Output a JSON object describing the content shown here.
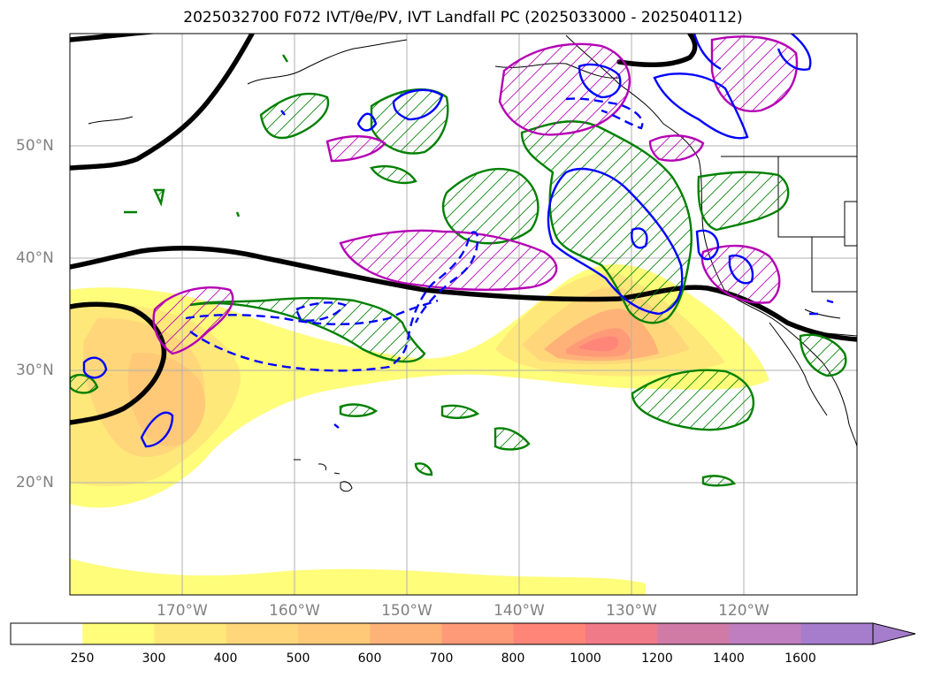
{
  "title": "2025032700 F072 IVT/θe/PV, IVT Landfall PC (2025033000 - 2025040112)",
  "map": {
    "extent": {
      "lon_min": -180,
      "lon_max": -110,
      "lat_min": 10,
      "lat_max": 60
    },
    "lat_ticks": [
      {
        "value": 20,
        "label": "20°N"
      },
      {
        "value": 30,
        "label": "30°N"
      },
      {
        "value": 40,
        "label": "40°N"
      },
      {
        "value": 50,
        "label": "50°N"
      }
    ],
    "lon_ticks": [
      {
        "value": -170,
        "label": "170°W"
      },
      {
        "value": -160,
        "label": "160°W"
      },
      {
        "value": -150,
        "label": "150°W"
      },
      {
        "value": -140,
        "label": "140°W"
      },
      {
        "value": -130,
        "label": "130°W"
      },
      {
        "value": -120,
        "label": "120°W"
      }
    ],
    "gridlines": true
  },
  "colorbar": {
    "levels": [
      "250",
      "300",
      "400",
      "500",
      "600",
      "700",
      "800",
      "1000",
      "1200",
      "1400",
      "1600"
    ],
    "colors": [
      "#ffffff",
      "#fffd7a",
      "#ffe87a",
      "#ffd77a",
      "#ffc978",
      "#ffb278",
      "#ff9a78",
      "#ff8578",
      "#f07a88",
      "#d07aa6",
      "#bf7ec0",
      "#a57dcc"
    ],
    "extend": "max"
  },
  "contour_colors": {
    "theta_e": "#000000",
    "pv": "#0000ff",
    "ivt_pc_a": "#008000",
    "ivt_pc_b": "#b400b4"
  }
}
